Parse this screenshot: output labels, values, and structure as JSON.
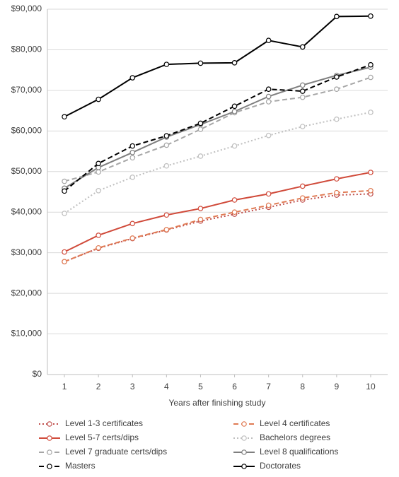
{
  "chart_data": {
    "type": "line",
    "x_label": "Years after finishing study",
    "x": [
      1,
      2,
      3,
      4,
      5,
      6,
      7,
      8,
      9,
      10
    ],
    "xlim": [
      0.5,
      10.5
    ],
    "xticks": [
      1,
      2,
      3,
      4,
      5,
      6,
      7,
      8,
      9,
      10
    ],
    "ylim": [
      0,
      90000
    ],
    "yticks": [
      {
        "value": 0,
        "label": "$0"
      },
      {
        "value": 10000,
        "label": "$10,000"
      },
      {
        "value": 20000,
        "label": "$20,000"
      },
      {
        "value": 30000,
        "label": "$30,000"
      },
      {
        "value": 40000,
        "label": "$40,000"
      },
      {
        "value": 50000,
        "label": "$50,000"
      },
      {
        "value": 60000,
        "label": "$60,000"
      },
      {
        "value": 70000,
        "label": "$70,000"
      },
      {
        "value": 80000,
        "label": "$80,000"
      },
      {
        "value": 90000,
        "label": "$90,000"
      }
    ],
    "grid": true,
    "legend": "bottom",
    "series": [
      {
        "name": "Level 1-3 certificates",
        "color": "#c0504d",
        "style": "dotted",
        "values": [
          27800,
          31100,
          33500,
          35600,
          37800,
          39500,
          41200,
          43000,
          44200,
          44500
        ]
      },
      {
        "name": "Level 4 certificates",
        "color": "#e07b54",
        "style": "dashed",
        "values": [
          27800,
          31200,
          33600,
          35700,
          38200,
          40000,
          41700,
          43500,
          44800,
          45300
        ]
      },
      {
        "name": "Level 5-7 certs/dips",
        "color": "#d04a3a",
        "style": "solid",
        "values": [
          30200,
          34300,
          37200,
          39300,
          40900,
          43000,
          44500,
          46400,
          48200,
          49800
        ]
      },
      {
        "name": "Bachelors degrees",
        "color": "#bfbfbf",
        "style": "dotted",
        "values": [
          39700,
          45300,
          48600,
          51400,
          53800,
          56300,
          58900,
          61100,
          62900,
          64600
        ]
      },
      {
        "name": "Level 7 graduate certs/dips",
        "color": "#a6a6a6",
        "style": "dashed",
        "values": [
          47600,
          49900,
          53400,
          56500,
          60400,
          64500,
          67200,
          68300,
          70300,
          73200
        ]
      },
      {
        "name": "Level 8 qualifications",
        "color": "#7f7f7f",
        "style": "solid",
        "values": [
          45900,
          51000,
          54700,
          58500,
          61600,
          64800,
          68500,
          71300,
          73700,
          75700
        ]
      },
      {
        "name": "Masters",
        "color": "#000000",
        "style": "dashed",
        "values": [
          45200,
          52000,
          56300,
          58800,
          61900,
          66100,
          70300,
          69800,
          73300,
          76300
        ]
      },
      {
        "name": "Doctorates",
        "color": "#000000",
        "style": "solid",
        "values": [
          63500,
          67800,
          73100,
          76400,
          76700,
          76800,
          82300,
          80700,
          88200,
          88300
        ]
      }
    ]
  }
}
